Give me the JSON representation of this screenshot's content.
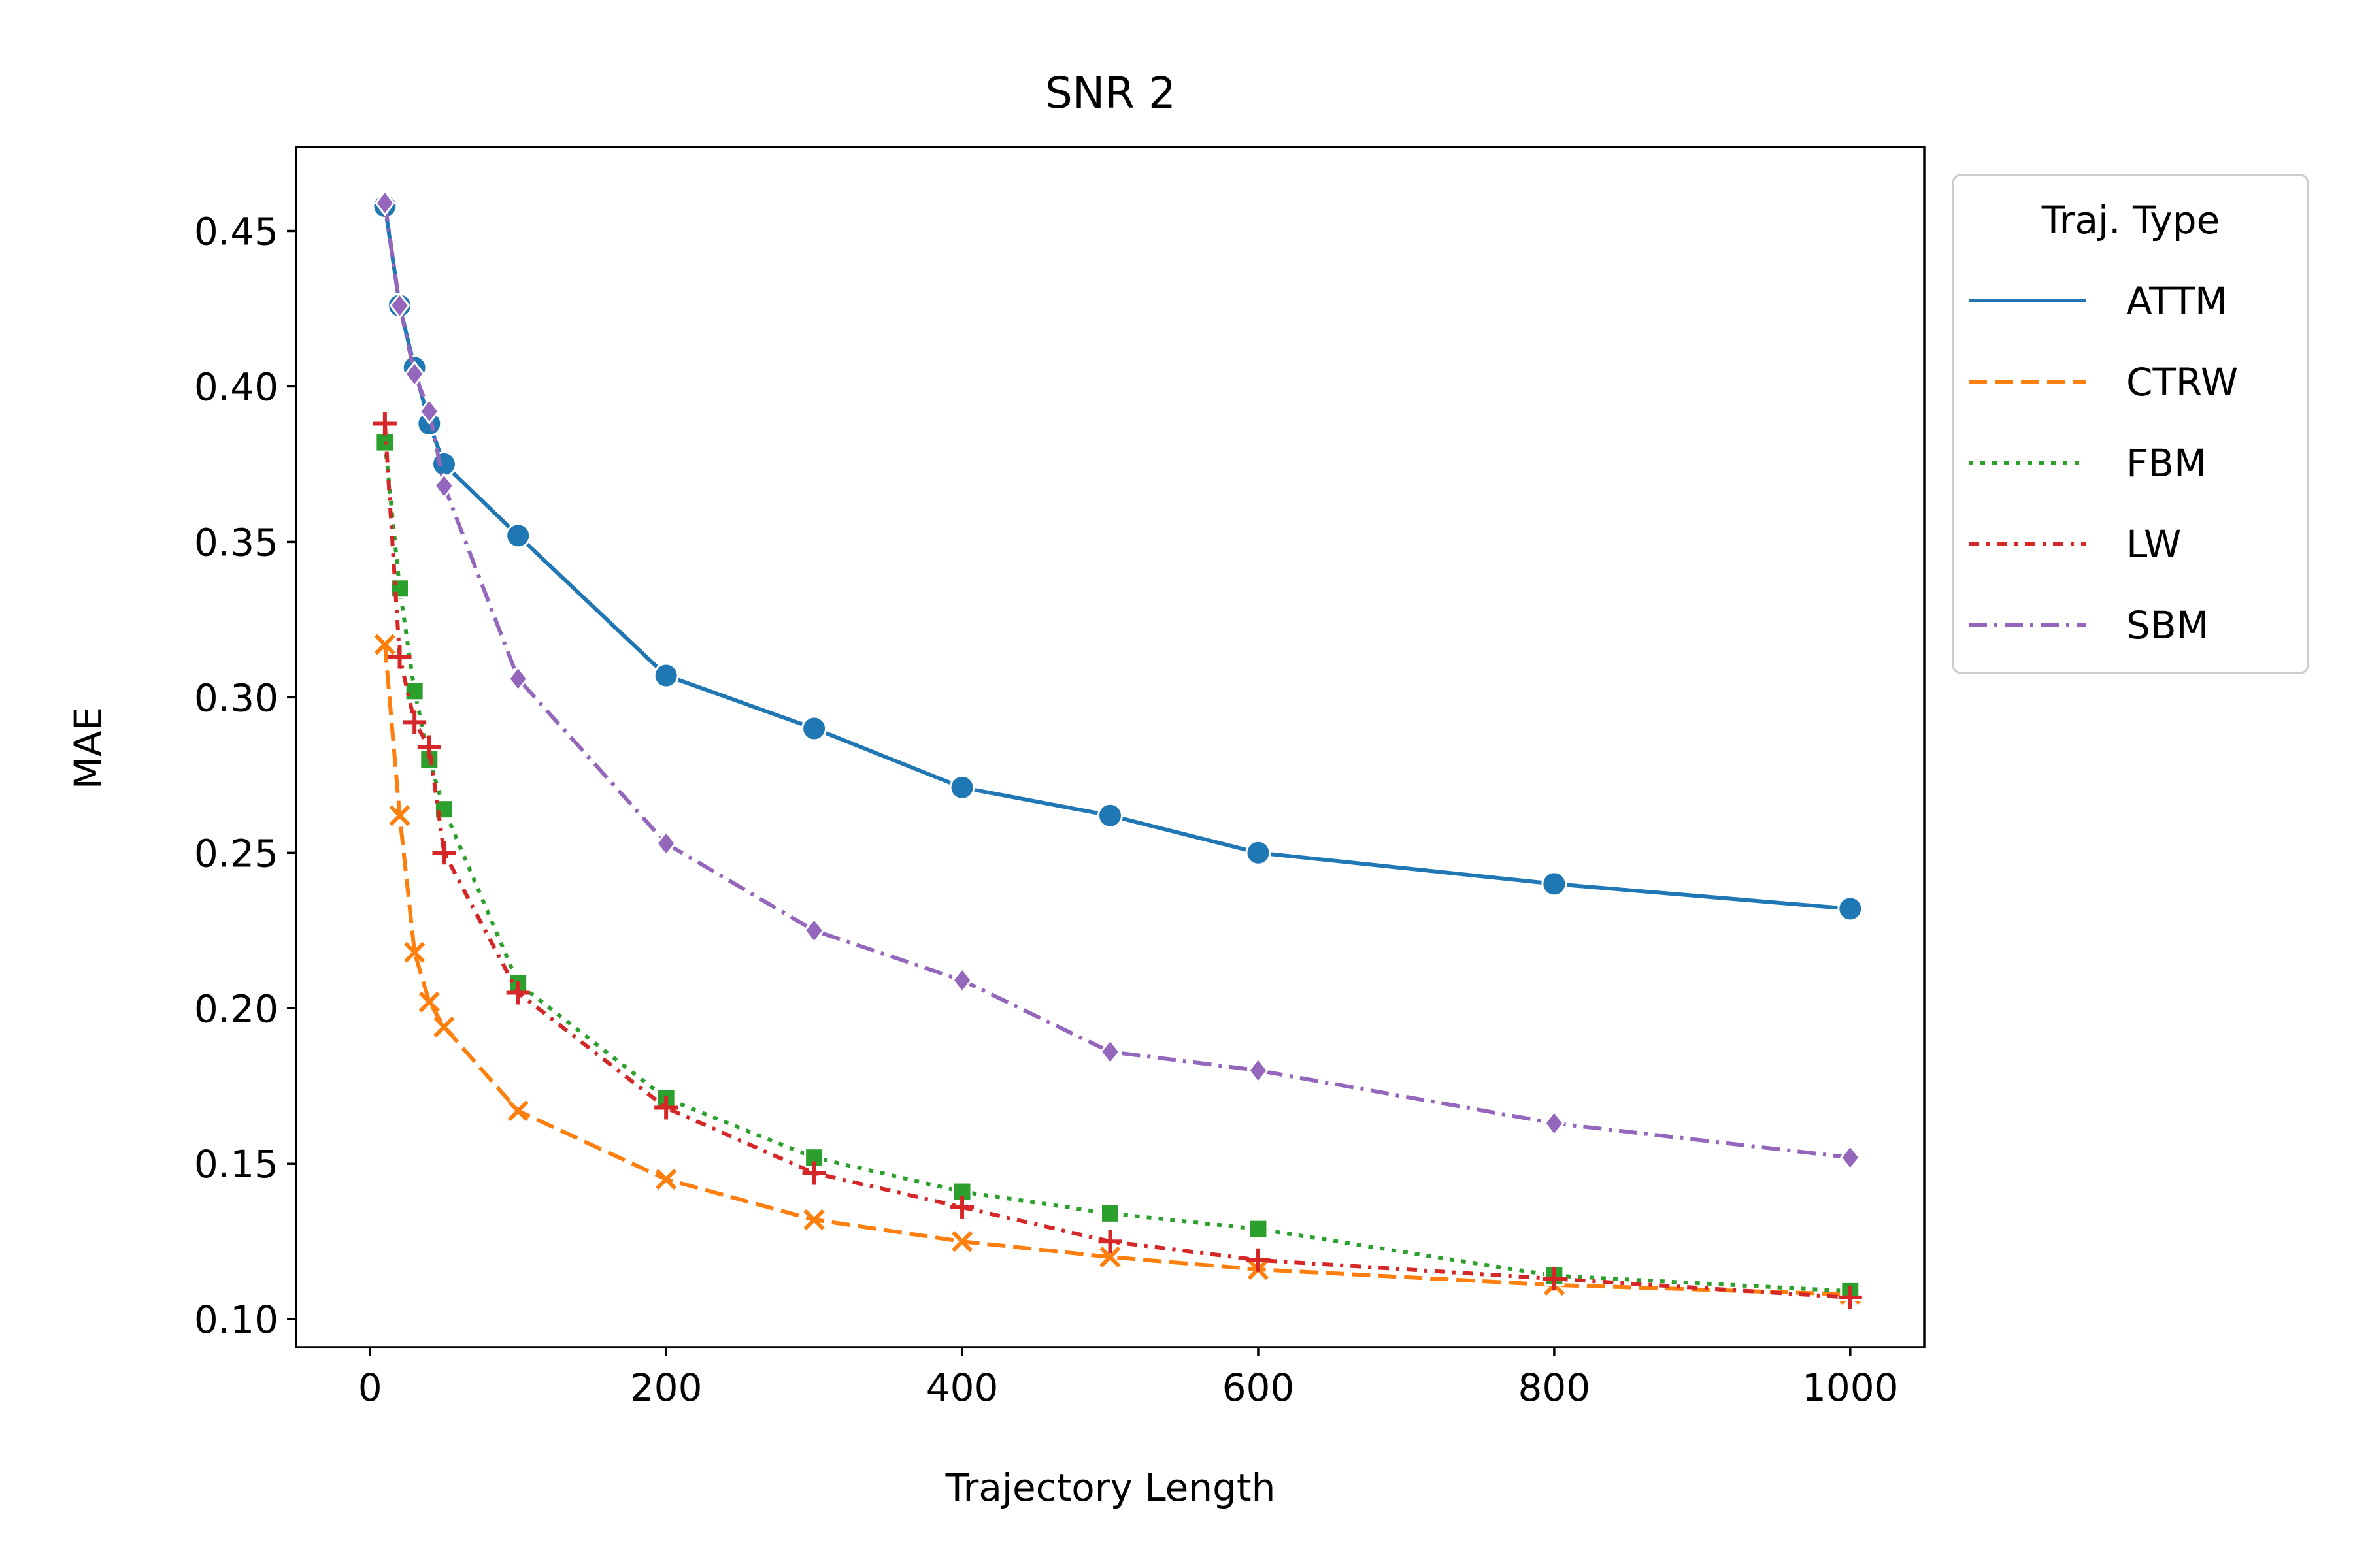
{
  "chart_data": {
    "type": "line",
    "title": "SNR 2",
    "xlabel": "Trajectory Length",
    "ylabel": "MAE",
    "xlim": [
      -50,
      1050
    ],
    "ylim": [
      0.091,
      0.477
    ],
    "xticks": [
      0,
      200,
      400,
      600,
      800,
      1000
    ],
    "yticks": [
      0.1,
      0.15,
      0.2,
      0.25,
      0.3,
      0.35,
      0.4,
      0.45
    ],
    "xtick_labels": [
      "0",
      "200",
      "400",
      "600",
      "800",
      "1000"
    ],
    "ytick_labels": [
      "0.10",
      "0.15",
      "0.20",
      "0.25",
      "0.30",
      "0.35",
      "0.40",
      "0.45"
    ],
    "grid": false,
    "legend": {
      "title": "Traj. Type",
      "placement": "outside upper right"
    },
    "x": [
      10,
      20,
      30,
      40,
      50,
      100,
      200,
      300,
      400,
      500,
      600,
      800,
      1000
    ],
    "series": [
      {
        "name": "ATTM",
        "color": "#1f77b4",
        "dash": "solid",
        "marker": "circle",
        "values": [
          0.458,
          0.426,
          0.406,
          0.388,
          0.375,
          0.352,
          0.307,
          0.29,
          0.271,
          0.262,
          0.25,
          0.24,
          0.232
        ]
      },
      {
        "name": "CTRW",
        "color": "#ff7f0e",
        "dash": "dashed",
        "marker": "x",
        "values": [
          0.317,
          0.262,
          0.218,
          0.202,
          0.194,
          0.167,
          0.145,
          0.132,
          0.125,
          0.12,
          0.116,
          0.111,
          0.108
        ]
      },
      {
        "name": "FBM",
        "color": "#2ca02c",
        "dash": "dotted",
        "marker": "square",
        "values": [
          0.382,
          0.335,
          0.302,
          0.28,
          0.264,
          0.208,
          0.171,
          0.152,
          0.141,
          0.134,
          0.129,
          0.114,
          0.109
        ]
      },
      {
        "name": "LW",
        "color": "#d62728",
        "dash": "dashdot2",
        "marker": "plus",
        "values": [
          0.388,
          0.313,
          0.292,
          0.284,
          0.25,
          0.205,
          0.168,
          0.147,
          0.136,
          0.125,
          0.119,
          0.113,
          0.107
        ]
      },
      {
        "name": "SBM",
        "color": "#9467bd",
        "dash": "dashdot",
        "marker": "diamond",
        "values": [
          0.459,
          0.426,
          0.404,
          0.392,
          0.368,
          0.306,
          0.253,
          0.225,
          0.209,
          0.186,
          0.18,
          0.163,
          0.152
        ]
      }
    ]
  }
}
